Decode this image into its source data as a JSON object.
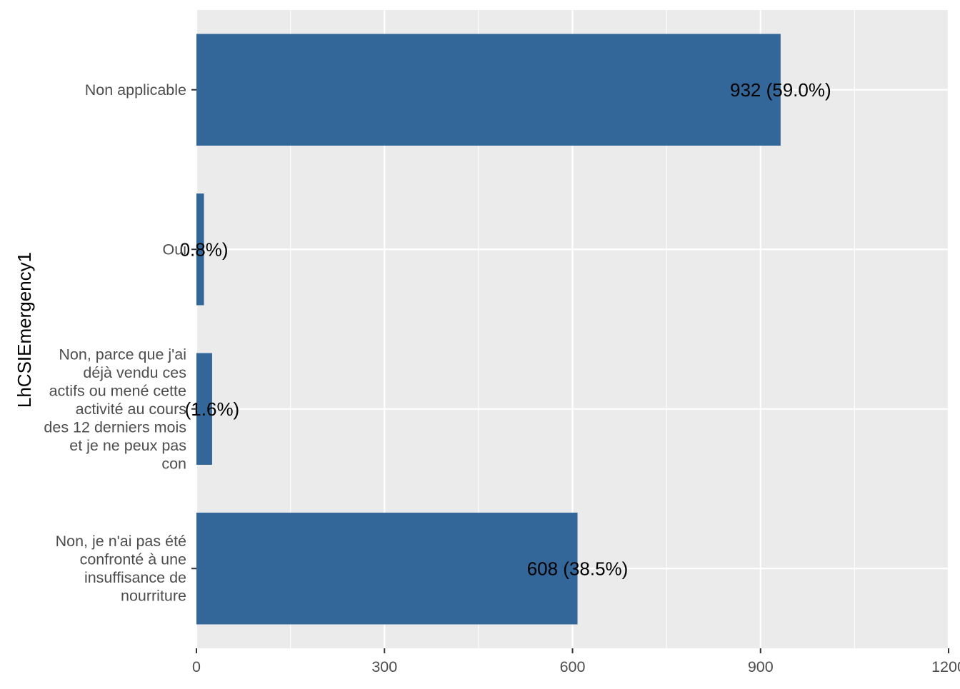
{
  "chart_data": {
    "type": "bar",
    "orientation": "horizontal",
    "ylabel": "LhCSIEmergency1",
    "xlabel": "",
    "categories": [
      [
        "Non, je n'ai pas été",
        "confronté à une",
        "insuffisance de",
        "nourriture"
      ],
      [
        "Non, parce que j'ai",
        "déjà vendu ces",
        "actifs ou mené cette",
        "activité au cours",
        "des 12 derniers mois",
        "et je ne peux pas",
        "con"
      ],
      [
        "Oui"
      ],
      [
        "Non applicable"
      ]
    ],
    "values": [
      608,
      25,
      12,
      932
    ],
    "data_labels": [
      "608 (38.5%)",
      "(1.6%)",
      "0.8%)",
      "932 (59.0%)"
    ],
    "x_ticks": [
      0,
      300,
      600,
      900,
      1200
    ],
    "x_tick_labels": [
      "0",
      "300",
      "600",
      "900",
      "1200"
    ],
    "xlim": [
      0,
      1200
    ],
    "grid": true,
    "colors": {
      "bar": "#336699",
      "panel": "#ebebeb",
      "grid_major": "#ffffff",
      "text_axis": "#4d4d4d",
      "text_label": "#000000"
    }
  }
}
